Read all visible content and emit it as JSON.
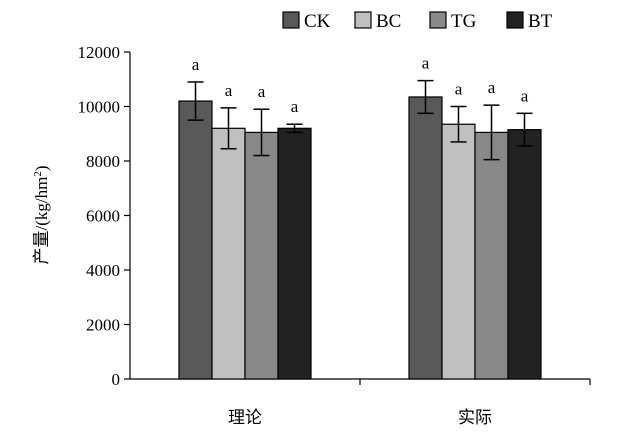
{
  "chart_data": {
    "type": "bar",
    "categories": [
      "理论",
      "实际"
    ],
    "ylabel_main": "产量/(kg/hm",
    "ylabel_sup": "2",
    "ylabel_tail": ")",
    "ylim": [
      0,
      12000
    ],
    "yticks": [
      0,
      2000,
      4000,
      6000,
      8000,
      10000,
      12000
    ],
    "ytick_labels": [
      "0",
      "2000",
      "4000",
      "6000",
      "8000",
      "10000",
      "12000"
    ],
    "legend_position": "top-right",
    "grid": false,
    "series": [
      {
        "name": "CK",
        "color": "#595959",
        "values": [
          10200,
          10350
        ],
        "errors": [
          700,
          600
        ],
        "sig": [
          "a",
          "a"
        ]
      },
      {
        "name": "BC",
        "color": "#c0c0c0",
        "values": [
          9200,
          9350
        ],
        "errors": [
          750,
          650
        ],
        "sig": [
          "a",
          "a"
        ]
      },
      {
        "name": "TG",
        "color": "#888888",
        "values": [
          9050,
          9050
        ],
        "errors": [
          850,
          1000
        ],
        "sig": [
          "a",
          "a"
        ]
      },
      {
        "name": "BT",
        "color": "#222222",
        "values": [
          9200,
          9150
        ],
        "errors": [
          150,
          600
        ],
        "sig": [
          "a",
          "a"
        ]
      }
    ]
  }
}
